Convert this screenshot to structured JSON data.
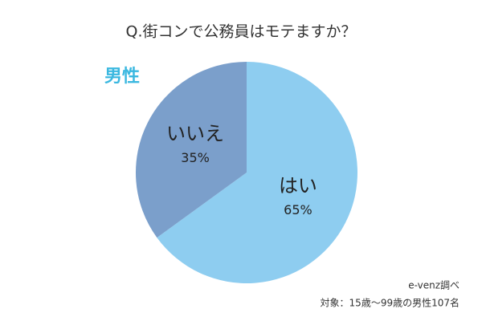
{
  "chart_data": {
    "type": "pie",
    "title": "Q.街コンで公務員はモテますか？",
    "subtitle": "男性",
    "categories": [
      "はい",
      "いいえ"
    ],
    "values": [
      65,
      35
    ],
    "value_labels": [
      "65%",
      "35%"
    ],
    "colors": [
      "#8ecdf0",
      "#7b9fcb"
    ],
    "notes": [
      "e-venz調べ",
      "対象：15歳～99歳の男性107名"
    ]
  }
}
